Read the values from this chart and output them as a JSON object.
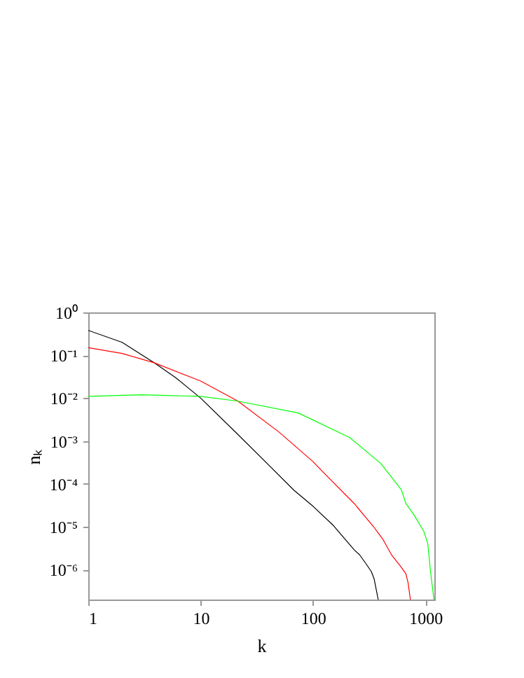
{
  "chart_data": {
    "type": "line",
    "xlabel": "k",
    "ylabel": "nₖ",
    "log": "xy",
    "grid": false,
    "legend": false,
    "marker": "none",
    "line_style": "solid",
    "xlim": [
      1,
      1200
    ],
    "ylim": [
      2e-07,
      1
    ],
    "xticks": [
      1,
      10,
      100,
      1000
    ],
    "yticks": [
      {
        "value": 1,
        "label": "10⁰"
      },
      {
        "value": 0.1,
        "label": "10⁻¹"
      },
      {
        "value": 0.01,
        "label": "10⁻²"
      },
      {
        "value": 0.001,
        "label": "10⁻³"
      },
      {
        "value": 0.0001,
        "label": "10⁻⁴"
      },
      {
        "value": 1e-05,
        "label": "10⁻⁵"
      },
      {
        "value": 1e-06,
        "label": "10⁻⁶"
      }
    ],
    "series": [
      {
        "color": "#000000",
        "x": [
          1,
          2,
          3.85,
          6,
          10,
          20,
          40,
          68,
          100,
          150,
          232,
          260,
          300,
          330,
          350,
          380
        ],
        "values": [
          0.38,
          0.2,
          0.067,
          0.03,
          0.01,
          0.0017,
          0.00028,
          7e-05,
          3e-05,
          1.1e-05,
          2.9e-06,
          2.2e-06,
          1.3e-06,
          9e-07,
          6e-07,
          2e-07
        ]
      },
      {
        "color": "#ff0000",
        "x": [
          1,
          2,
          3.85,
          10,
          21.5,
          50,
          100,
          120,
          232,
          346,
          420,
          500,
          600,
          670,
          700,
          735
        ],
        "values": [
          0.15,
          0.11,
          0.067,
          0.025,
          0.0085,
          0.0016,
          0.00033,
          0.0002,
          3.5e-05,
          1e-05,
          5e-06,
          2.2e-06,
          1.2e-06,
          8e-07,
          5e-07,
          2e-07
        ]
      },
      {
        "color": "#00ff00",
        "x": [
          1,
          3,
          10,
          21.5,
          74,
          212,
          400,
          610,
          670,
          800,
          970,
          1050,
          1110,
          1190
        ],
        "values": [
          0.011,
          0.012,
          0.011,
          0.0085,
          0.0045,
          0.0012,
          0.0003,
          7.3e-05,
          3.5e-05,
          1.8e-05,
          7.7e-06,
          4e-06,
          9e-07,
          2e-07
        ]
      }
    ]
  }
}
